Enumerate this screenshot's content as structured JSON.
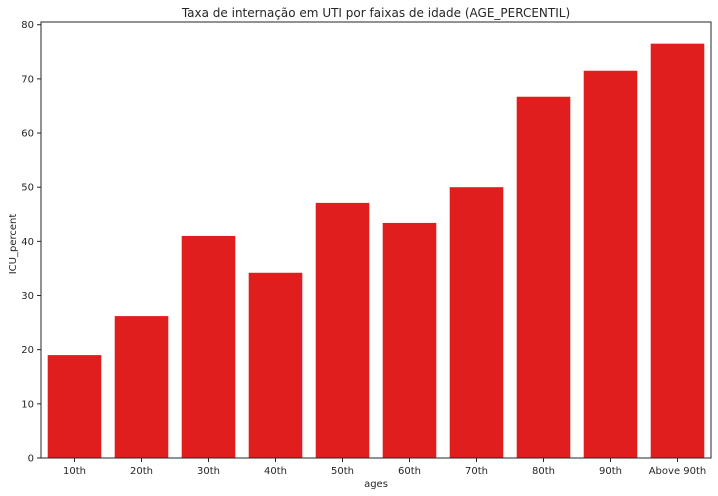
{
  "chart_data": {
    "type": "bar",
    "title": "Taxa de internação em UTI por faixas de idade (AGE_PERCENTIL)",
    "xlabel": "ages",
    "ylabel": "ICU_percent",
    "categories": [
      "10th",
      "20th",
      "30th",
      "40th",
      "50th",
      "60th",
      "70th",
      "80th",
      "90th",
      "Above 90th"
    ],
    "values": [
      19.0,
      26.2,
      41.0,
      34.2,
      47.1,
      43.4,
      50.0,
      66.7,
      71.5,
      76.5
    ],
    "ylim": [
      0,
      80.5
    ],
    "yticks": [
      0,
      10,
      20,
      30,
      40,
      50,
      60,
      70,
      80
    ],
    "bar_color": "#e01e1e",
    "grid": false,
    "legend": "none"
  }
}
